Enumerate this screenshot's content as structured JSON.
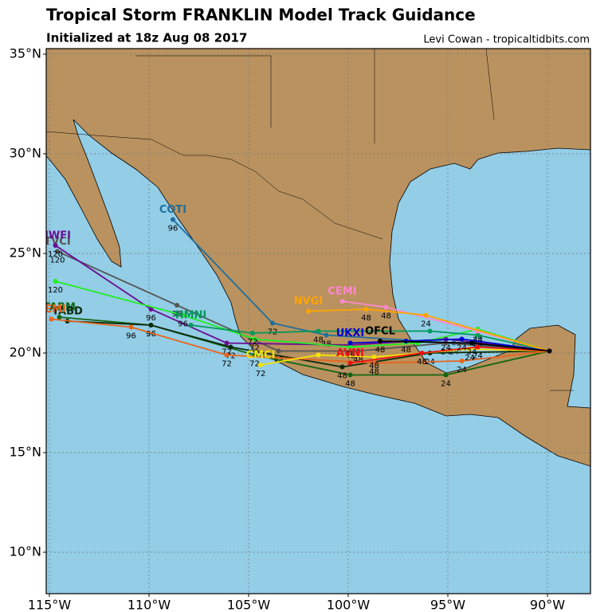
{
  "header": {
    "title": "Tropical Storm FRANKLIN Model Track Guidance",
    "subtitle": "Initialized at 18z Aug 08 2017",
    "credit": "Levi Cowan - tropicaltidbits.com"
  },
  "map": {
    "lon_range": [
      -115.16,
      -87.84
    ],
    "lat_range": [
      7.92,
      35.28
    ],
    "grid": true,
    "lat_ticks": [
      {
        "value": 10,
        "label": "10°N"
      },
      {
        "value": 15,
        "label": "15°N"
      },
      {
        "value": 20,
        "label": "20°N"
      },
      {
        "value": 25,
        "label": "25°N"
      },
      {
        "value": 30,
        "label": "30°N"
      },
      {
        "value": 35,
        "label": "35°N"
      }
    ],
    "lon_ticks": [
      {
        "value": -115,
        "label": "115°W"
      },
      {
        "value": -110,
        "label": "110°W"
      },
      {
        "value": -105,
        "label": "105°W"
      },
      {
        "value": -100,
        "label": "100°W"
      },
      {
        "value": -95,
        "label": "95°W"
      },
      {
        "value": -90,
        "label": "90°W"
      }
    ],
    "tracks": [
      {
        "name": "COTI",
        "color": "#1f6f9c",
        "lon": [
          -89.9,
          -94.7,
          -101.1,
          -103.8,
          -108.8
        ],
        "lat": [
          20.1,
          20.5,
          20.9,
          21.5,
          26.7
        ],
        "hours": [
          null,
          24,
          48,
          72,
          96
        ]
      },
      {
        "name": "TVCI",
        "color": "#555555",
        "lon": [
          -89.9,
          -95.1,
          -99.5,
          -103.5,
          -108.6,
          -114.6
        ],
        "lat": [
          20.1,
          20.5,
          20.1,
          20.1,
          22.4,
          25.1
        ],
        "hours": [
          null,
          24,
          48,
          72,
          96,
          120
        ]
      },
      {
        "name": "HWFI",
        "color": "#6a0d91",
        "lon": [
          -89.9,
          -95.1,
          -99.9,
          -106.1,
          -109.9,
          -114.7
        ],
        "lat": [
          20.1,
          20.7,
          20.4,
          20.5,
          22.2,
          25.4
        ],
        "hours": [
          null,
          24,
          48,
          72,
          96,
          120
        ]
      },
      {
        "color": "#22ee22",
        "lon": [
          -89.9,
          -93.5,
          -96.5,
          -99.9,
          -104.7,
          -108.3,
          -114.7
        ],
        "lat": [
          20.1,
          21.2,
          20.5,
          20.3,
          20.7,
          21.9,
          23.6
        ],
        "hours": [
          null,
          24,
          null,
          48,
          72,
          96,
          120
        ]
      },
      {
        "name": "TABM",
        "color": "#116611",
        "lon": [
          -89.9,
          -95.1,
          -99.9,
          -104.7,
          -109.9,
          -114.5
        ],
        "lat": [
          20.1,
          18.9,
          18.9,
          19.9,
          21.4,
          21.8
        ],
        "hours": [
          null,
          24,
          48,
          72,
          96,
          null
        ]
      },
      {
        "name": "TABD",
        "color": "#0a2a0a",
        "lon": [
          -89.9,
          -95.9,
          -100.3,
          -105.9,
          -109.9,
          -114.1
        ],
        "lat": [
          20.1,
          20.0,
          19.3,
          20.3,
          21.4,
          21.6
        ],
        "hours": [
          null,
          24,
          48,
          72,
          96,
          null
        ]
      },
      {
        "name": "AEMI",
        "color": "#e8641b",
        "lon": [
          -89.9,
          -94.3,
          -98.7,
          -106.1,
          -110.9,
          -114.9
        ],
        "lat": [
          20.1,
          19.6,
          19.5,
          19.9,
          21.3,
          21.7
        ],
        "hours": [
          null,
          24,
          48,
          72,
          96,
          null
        ]
      },
      {
        "name": "HMNI",
        "color": "#00995a",
        "lon": [
          -89.9,
          -93.5,
          -95.9,
          -101.5,
          -104.8,
          -107.9
        ],
        "lat": [
          20.1,
          20.9,
          21.1,
          21.1,
          21.0,
          21.4
        ],
        "hours": [
          null,
          24,
          null,
          48,
          72,
          null
        ]
      },
      {
        "name": "CMCI",
        "color": "#f5e400",
        "lon": [
          -89.9,
          -93.9,
          -98.7,
          -101.5,
          -104.4
        ],
        "lat": [
          20.1,
          20.2,
          19.8,
          19.9,
          19.4
        ],
        "hours": [
          null,
          24,
          48,
          null,
          72
        ]
      },
      {
        "name": "CEMI",
        "color": "#ff88cc",
        "lon": [
          -89.9,
          -93.5,
          -98.1,
          -100.3
        ],
        "lat": [
          20.1,
          21.1,
          22.3,
          22.6
        ],
        "hours": [
          null,
          24,
          48,
          null
        ]
      },
      {
        "name": "NVGI",
        "color": "#ffa500",
        "lon": [
          -89.9,
          -96.1,
          -99.1,
          -102.0
        ],
        "lat": [
          20.1,
          21.9,
          22.2,
          22.1
        ],
        "hours": [
          null,
          24,
          48,
          null
        ]
      },
      {
        "name": "AVNI",
        "color": "#ee1111",
        "lon": [
          -89.9,
          -93.5,
          -96.3,
          -99.9
        ],
        "lat": [
          20.1,
          20.3,
          20.0,
          19.5
        ],
        "hours": [
          null,
          24,
          48,
          null
        ]
      },
      {
        "name": "UKXI",
        "color": "#0000cc",
        "lon": [
          -89.9,
          -94.3,
          -97.1,
          -99.9
        ],
        "lat": [
          20.1,
          20.7,
          20.6,
          20.5
        ],
        "hours": [
          null,
          24,
          48,
          null
        ]
      },
      {
        "name": "OFCL",
        "color": "#000000",
        "lon": [
          -89.9,
          -93.8,
          -98.4
        ],
        "lat": [
          20.1,
          20.5,
          20.6
        ],
        "hours": [
          null,
          24,
          48
        ]
      }
    ]
  }
}
